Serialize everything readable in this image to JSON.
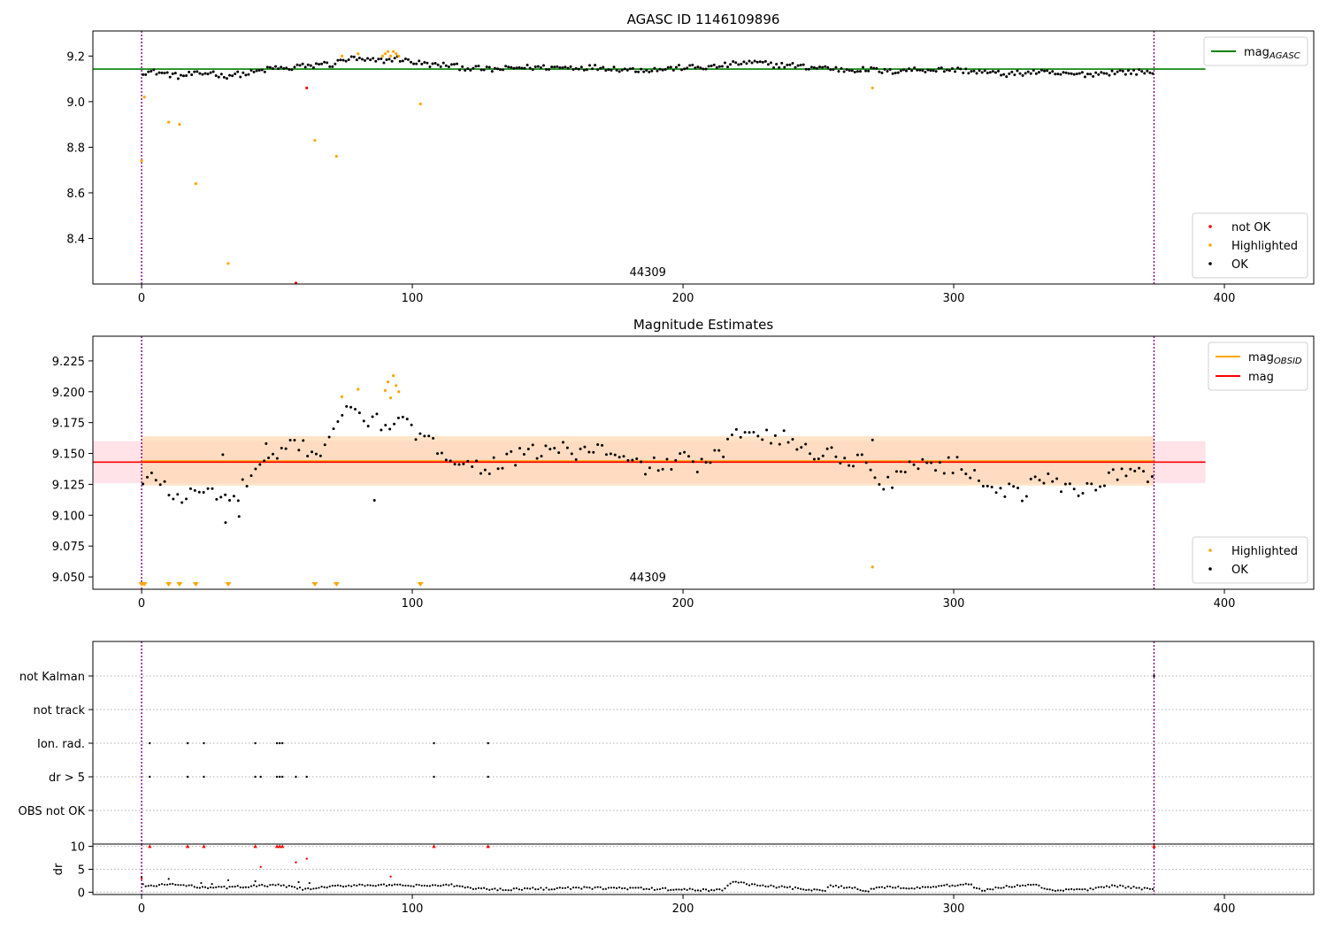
{
  "figure": {
    "title_top": "AGASC ID 1146109896",
    "title_mid": "Magnitude Estimates"
  },
  "colors": {
    "ok": "#000000",
    "highlighted": "#ffa500",
    "not_ok": "#ff0000",
    "mag_agasc": "#008000",
    "mag": "#ff0000",
    "mag_obsid": "#ffa500",
    "boundary": "#800080",
    "band_mag": "#ffc0cb",
    "band_obsid": "#ffd8b0"
  },
  "chart_data": [
    {
      "id": "top",
      "type": "scatter",
      "title": "AGASC ID 1146109896",
      "xlim": [
        -18,
        433
      ],
      "ylim": [
        8.2,
        9.31
      ],
      "xticks": [
        0,
        100,
        200,
        300,
        400
      ],
      "yticks": [
        8.4,
        8.6,
        8.8,
        9.0,
        9.2
      ],
      "ytick_decimals": 1,
      "obsid_label": "44309",
      "obsid_label_x": 187,
      "obsid_boundaries": [
        0,
        374
      ],
      "mag_agasc": {
        "value": 9.143,
        "x_range": [
          -18,
          393
        ]
      },
      "ok_segments": [
        [
          0,
          9.13
        ],
        [
          5,
          9.13
        ],
        [
          10,
          9.12
        ],
        [
          14,
          9.11
        ],
        [
          18,
          9.12
        ],
        [
          22,
          9.12
        ],
        [
          26,
          9.13
        ],
        [
          30,
          9.11
        ],
        [
          34,
          9.12
        ],
        [
          38,
          9.12
        ],
        [
          42,
          9.13
        ],
        [
          46,
          9.14
        ],
        [
          50,
          9.15
        ],
        [
          54,
          9.14
        ],
        [
          58,
          9.16
        ],
        [
          62,
          9.15
        ],
        [
          66,
          9.17
        ],
        [
          70,
          9.16
        ],
        [
          74,
          9.18
        ],
        [
          78,
          9.19
        ],
        [
          82,
          9.18
        ],
        [
          86,
          9.18
        ],
        [
          90,
          9.18
        ],
        [
          94,
          9.19
        ],
        [
          98,
          9.18
        ],
        [
          102,
          9.17
        ],
        [
          108,
          9.16
        ],
        [
          114,
          9.16
        ],
        [
          118,
          9.15
        ],
        [
          130,
          9.14
        ],
        [
          140,
          9.15
        ],
        [
          150,
          9.15
        ],
        [
          160,
          9.15
        ],
        [
          170,
          9.15
        ],
        [
          180,
          9.14
        ],
        [
          190,
          9.14
        ],
        [
          200,
          9.15
        ],
        [
          210,
          9.15
        ],
        [
          216,
          9.16
        ],
        [
          222,
          9.17
        ],
        [
          228,
          9.17
        ],
        [
          234,
          9.16
        ],
        [
          240,
          9.16
        ],
        [
          246,
          9.15
        ],
        [
          252,
          9.15
        ],
        [
          258,
          9.14
        ],
        [
          264,
          9.14
        ],
        [
          270,
          9.14
        ],
        [
          276,
          9.13
        ],
        [
          282,
          9.14
        ],
        [
          290,
          9.14
        ],
        [
          300,
          9.14
        ],
        [
          310,
          9.13
        ],
        [
          320,
          9.12
        ],
        [
          330,
          9.13
        ],
        [
          340,
          9.12
        ],
        [
          350,
          9.12
        ],
        [
          360,
          9.13
        ],
        [
          374,
          9.13
        ]
      ],
      "ok_step": 1,
      "ok_jitter": 0.012,
      "highlighted": [
        [
          0,
          8.74
        ],
        [
          1,
          9.02
        ],
        [
          10,
          8.91
        ],
        [
          14,
          8.9
        ],
        [
          20,
          8.64
        ],
        [
          32,
          8.29
        ],
        [
          64,
          8.83
        ],
        [
          72,
          8.76
        ],
        [
          74,
          9.2
        ],
        [
          80,
          9.21
        ],
        [
          89,
          9.2
        ],
        [
          90,
          9.21
        ],
        [
          91,
          9.22
        ],
        [
          92,
          9.2
        ],
        [
          93,
          9.22
        ],
        [
          94,
          9.21
        ],
        [
          95,
          9.2
        ],
        [
          103,
          8.99
        ],
        [
          270,
          9.06
        ]
      ],
      "not_ok": [
        [
          57,
          8.2
        ],
        [
          61,
          9.06
        ]
      ],
      "legend_lines": [
        {
          "label": "mag",
          "sub": "AGASC",
          "color": "#008000"
        }
      ],
      "legend_points": [
        {
          "label": "not OK",
          "color": "#ff0000"
        },
        {
          "label": "Highlighted",
          "color": "#ffa500"
        },
        {
          "label": "OK",
          "color": "#000000"
        }
      ]
    },
    {
      "id": "mid",
      "type": "scatter",
      "title": "Magnitude Estimates",
      "xlim": [
        -18,
        433
      ],
      "ylim": [
        9.04,
        9.245
      ],
      "xticks": [
        0,
        100,
        200,
        300,
        400
      ],
      "yticks": [
        9.05,
        9.075,
        9.1,
        9.125,
        9.15,
        9.175,
        9.2,
        9.225
      ],
      "ytick_decimals": 3,
      "obsid_label": "44309",
      "obsid_label_x": 187,
      "obsid_boundaries": [
        0,
        374
      ],
      "mag": {
        "value": 9.143,
        "band": [
          9.126,
          9.16
        ],
        "x_range": [
          -18,
          393
        ]
      },
      "mag_obsid": {
        "value": 9.143,
        "band": [
          9.124,
          9.164
        ],
        "x_range": [
          0,
          374
        ]
      },
      "ok_segments": [
        [
          0,
          9.124
        ],
        [
          4,
          9.13
        ],
        [
          8,
          9.128
        ],
        [
          12,
          9.112
        ],
        [
          16,
          9.115
        ],
        [
          22,
          9.12
        ],
        [
          28,
          9.118
        ],
        [
          34,
          9.11
        ],
        [
          38,
          9.125
        ],
        [
          44,
          9.14
        ],
        [
          50,
          9.145
        ],
        [
          56,
          9.16
        ],
        [
          60,
          9.155
        ],
        [
          66,
          9.15
        ],
        [
          70,
          9.17
        ],
        [
          74,
          9.18
        ],
        [
          78,
          9.185
        ],
        [
          82,
          9.18
        ],
        [
          86,
          9.175
        ],
        [
          96,
          9.175
        ],
        [
          102,
          9.165
        ],
        [
          108,
          9.155
        ],
        [
          114,
          9.15
        ],
        [
          120,
          9.14
        ],
        [
          128,
          9.14
        ],
        [
          136,
          9.145
        ],
        [
          144,
          9.15
        ],
        [
          152,
          9.155
        ],
        [
          160,
          9.15
        ],
        [
          168,
          9.155
        ],
        [
          176,
          9.145
        ],
        [
          184,
          9.14
        ],
        [
          192,
          9.14
        ],
        [
          200,
          9.145
        ],
        [
          208,
          9.14
        ],
        [
          214,
          9.15
        ],
        [
          220,
          9.165
        ],
        [
          226,
          9.172
        ],
        [
          232,
          9.165
        ],
        [
          240,
          9.16
        ],
        [
          248,
          9.15
        ],
        [
          256,
          9.15
        ],
        [
          262,
          9.145
        ],
        [
          268,
          9.145
        ],
        [
          272,
          9.125
        ],
        [
          280,
          9.13
        ],
        [
          286,
          9.145
        ],
        [
          294,
          9.14
        ],
        [
          302,
          9.14
        ],
        [
          310,
          9.13
        ],
        [
          318,
          9.12
        ],
        [
          326,
          9.118
        ],
        [
          332,
          9.13
        ],
        [
          340,
          9.125
        ],
        [
          348,
          9.12
        ],
        [
          356,
          9.13
        ],
        [
          364,
          9.135
        ],
        [
          374,
          9.13
        ]
      ],
      "ok_step": 1.6,
      "ok_jitter": 0.007,
      "extra_ok": [
        [
          31,
          9.094
        ],
        [
          36,
          9.099
        ],
        [
          30,
          9.149
        ],
        [
          86,
          9.112
        ],
        [
          46,
          9.158
        ],
        [
          270,
          9.161
        ]
      ],
      "highlighted": [
        [
          74,
          9.196
        ],
        [
          80,
          9.202
        ],
        [
          90,
          9.201
        ],
        [
          91,
          9.208
        ],
        [
          92,
          9.195
        ],
        [
          93,
          9.213
        ],
        [
          94,
          9.205
        ],
        [
          95,
          9.2
        ],
        [
          270,
          9.058
        ]
      ],
      "offscale_low": [
        0,
        1,
        10,
        14,
        20,
        32,
        64,
        72,
        103
      ],
      "legend_lines": [
        {
          "label": "mag",
          "sub": "OBSID",
          "color": "#ffa500"
        },
        {
          "label": "mag",
          "sub": "",
          "color": "#ff0000"
        }
      ],
      "legend_points": [
        {
          "label": "Highlighted",
          "color": "#ffa500"
        },
        {
          "label": "OK",
          "color": "#000000"
        }
      ]
    },
    {
      "id": "flags",
      "type": "scatter",
      "xlim": [
        -18,
        433
      ],
      "categories": [
        "not Kalman",
        "not track",
        "Ion. rad.",
        "dr > 5",
        "OBS not OK"
      ],
      "obsid_boundaries": [
        0,
        374
      ],
      "flag_points": {
        "not Kalman": [
          374
        ],
        "not track": [],
        "Ion. rad.": [
          3,
          17,
          23,
          42,
          50,
          51,
          52,
          108,
          128
        ],
        "dr > 5": [
          3,
          17,
          23,
          42,
          44,
          50,
          51,
          52,
          57,
          61,
          108,
          128
        ],
        "OBS not OK": []
      }
    },
    {
      "id": "dr",
      "type": "scatter",
      "ylabel": "dr",
      "xlim": [
        -18,
        433
      ],
      "ylim": [
        -0.5,
        10.5
      ],
      "xticks": [
        0,
        100,
        200,
        300,
        400
      ],
      "yticks": [
        0,
        5,
        10
      ],
      "obsid_boundaries": [
        0,
        374
      ],
      "dr_segments": [
        [
          0,
          1.6
        ],
        [
          5,
          1.3
        ],
        [
          10,
          1.8
        ],
        [
          15,
          1.5
        ],
        [
          20,
          1.2
        ],
        [
          30,
          1.0
        ],
        [
          40,
          1.3
        ],
        [
          50,
          1.5
        ],
        [
          55,
          1.2
        ],
        [
          60,
          0.6
        ],
        [
          65,
          0.9
        ],
        [
          70,
          1.2
        ],
        [
          80,
          1.6
        ],
        [
          90,
          1.5
        ],
        [
          100,
          1.4
        ],
        [
          115,
          1.5
        ],
        [
          120,
          1.0
        ],
        [
          130,
          0.6
        ],
        [
          160,
          0.9
        ],
        [
          175,
          0.9
        ],
        [
          190,
          0.7
        ],
        [
          205,
          0.5
        ],
        [
          215,
          0.5
        ],
        [
          218,
          2.3
        ],
        [
          225,
          1.7
        ],
        [
          240,
          0.9
        ],
        [
          252,
          0.2
        ],
        [
          255,
          1.5
        ],
        [
          262,
          1.0
        ],
        [
          268,
          0.2
        ],
        [
          272,
          1.2
        ],
        [
          285,
          1.0
        ],
        [
          300,
          1.5
        ],
        [
          305,
          1.9
        ],
        [
          310,
          0.4
        ],
        [
          320,
          1.2
        ],
        [
          330,
          1.6
        ],
        [
          335,
          0.4
        ],
        [
          350,
          0.6
        ],
        [
          360,
          1.4
        ],
        [
          374,
          0.5
        ]
      ],
      "dr_step": 1,
      "dr_jitter": 0.25,
      "extra_black": [
        [
          10,
          2.9
        ],
        [
          22,
          2.0
        ],
        [
          26,
          1.8
        ],
        [
          32,
          2.6
        ],
        [
          42,
          2.4
        ],
        [
          58,
          2.2
        ],
        [
          62,
          2.0
        ],
        [
          0,
          3.3
        ]
      ],
      "dr_red": [
        [
          0,
          3.0
        ],
        [
          3,
          10
        ],
        [
          17,
          10
        ],
        [
          23,
          10
        ],
        [
          42,
          10
        ],
        [
          44,
          5.5
        ],
        [
          50,
          10
        ],
        [
          51,
          10
        ],
        [
          52,
          10
        ],
        [
          57,
          6.5
        ],
        [
          61,
          7.3
        ],
        [
          92,
          3.4
        ],
        [
          108,
          10
        ],
        [
          128,
          10
        ],
        [
          374,
          10
        ]
      ]
    }
  ]
}
